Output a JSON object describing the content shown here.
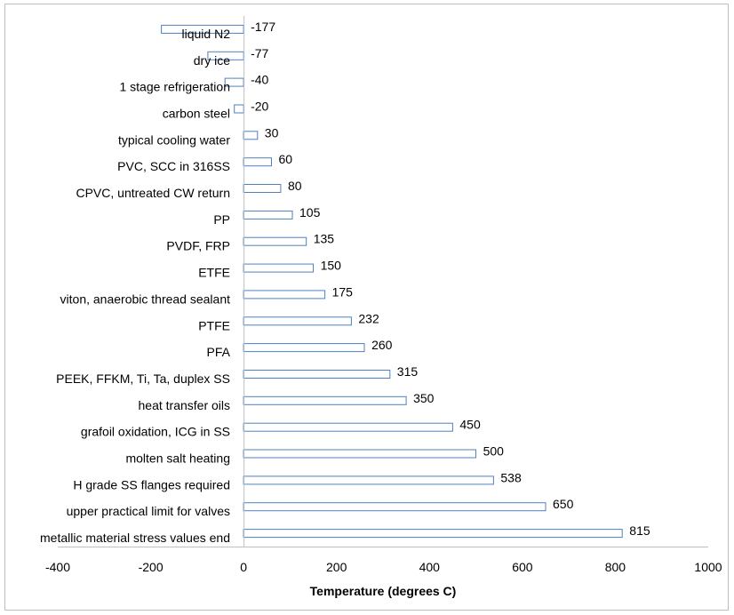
{
  "chart_data": {
    "type": "bar",
    "orientation": "horizontal",
    "title": "",
    "xlabel": "Temperature (degrees C)",
    "ylabel": "",
    "xlim": [
      -400,
      1000
    ],
    "xticks": [
      -400,
      -200,
      0,
      200,
      400,
      600,
      800,
      1000
    ],
    "grid": false,
    "legend": "none",
    "bar_edge_color": "#4f81bd",
    "bar_fill_color": "#ffffff",
    "categories": [
      "liquid N2",
      "dry ice",
      "1 stage refrigeration",
      "carbon steel",
      "typical cooling water",
      "PVC, SCC in 316SS",
      "CPVC, untreated CW return",
      "PP",
      "PVDF, FRP",
      "ETFE",
      "viton, anaerobic thread sealant",
      "PTFE",
      "PFA",
      "PEEK, FFKM, Ti, Ta, duplex SS",
      "heat transfer oils",
      "grafoil oxidation, ICG in SS",
      "molten salt heating",
      "H grade SS flanges required",
      "upper practical limit for valves",
      "metallic material stress values end"
    ],
    "values": [
      -177,
      -77,
      -40,
      -20,
      30,
      60,
      80,
      105,
      135,
      150,
      175,
      232,
      260,
      315,
      350,
      450,
      500,
      538,
      650,
      815
    ]
  }
}
